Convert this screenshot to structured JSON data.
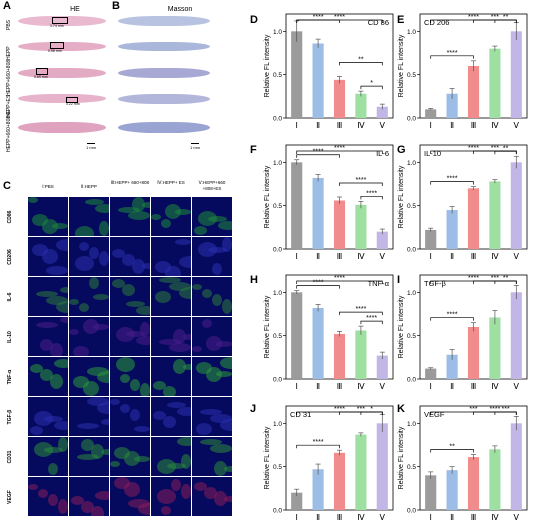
{
  "panel_letters": {
    "A": "A",
    "B": "B",
    "C": "C",
    "D": "D",
    "E": "E",
    "F": "F",
    "G": "G",
    "H": "H",
    "I": "I",
    "J": "J",
    "K": "K"
  },
  "panel_a": {
    "title": "HE",
    "rows": [
      "PBS",
      "HEPP",
      "HEPP+660+808",
      "HEPP+ES",
      "HEPP+660+808+E"
    ],
    "measures": [
      "1.74 mm",
      "0.96 mm",
      "0.69 mm",
      "0.22 mm",
      ""
    ],
    "scale": "1 mm"
  },
  "panel_b": {
    "title": "Masson",
    "scale": "1 mm"
  },
  "panel_c": {
    "columns": [
      "Ⅰ:PBS",
      "Ⅱ:HEPP",
      "Ⅲ:HEPP+ 660+808",
      "Ⅳ:HEPP+ ES",
      "Ⅴ:HEPP+660 +808+ES"
    ],
    "rows": [
      "CD86",
      "CD206",
      "IL-6",
      "IL-10",
      "TNF-α",
      "TGF-β",
      "CD31",
      "VEGF"
    ],
    "scale": "100 μm"
  },
  "colors": {
    "g1": "#9b9b9b",
    "g2": "#9bbde6",
    "g3": "#f08c8c",
    "g4": "#9ee0a2",
    "g5": "#c2b6e6",
    "err": "#555555"
  },
  "chart_data": [
    {
      "id": "D",
      "type": "bar",
      "title": "CD 86",
      "ylabel": "Relative FL intensity",
      "categories": [
        "Ⅰ",
        "Ⅱ",
        "Ⅲ",
        "Ⅳ",
        "Ⅴ"
      ],
      "values": [
        1.0,
        0.86,
        0.44,
        0.28,
        0.13
      ],
      "errors": [
        0.12,
        0.05,
        0.04,
        0.03,
        0.03
      ],
      "ylim": [
        0,
        1.2
      ],
      "title_pos": "right",
      "sig": [
        {
          "a": 0,
          "b": 2,
          "label": "****",
          "lvl": 0
        },
        {
          "a": 0,
          "b": 4,
          "label": "****",
          "lvl": 1
        },
        {
          "a": 2,
          "b": 4,
          "label": "**",
          "lvl": 1
        },
        {
          "a": 3,
          "b": 4,
          "label": "*",
          "lvl": 0
        }
      ]
    },
    {
      "id": "E",
      "type": "bar",
      "title": "CD 206",
      "ylabel": "Relative FL intensity",
      "categories": [
        "Ⅰ",
        "Ⅱ",
        "Ⅲ",
        "Ⅳ",
        "Ⅴ"
      ],
      "values": [
        0.1,
        0.28,
        0.6,
        0.8,
        1.0
      ],
      "errors": [
        0.01,
        0.06,
        0.06,
        0.03,
        0.1
      ],
      "ylim": [
        0,
        1.2
      ],
      "title_pos": "left",
      "sig": [
        {
          "a": 0,
          "b": 2,
          "label": "****",
          "lvl": 0
        },
        {
          "a": 0,
          "b": 4,
          "label": "****",
          "lvl": 1
        },
        {
          "a": 2,
          "b": 4,
          "label": "***",
          "lvl": 2
        },
        {
          "a": 3,
          "b": 4,
          "label": "**",
          "lvl": 0
        }
      ]
    },
    {
      "id": "F",
      "type": "bar",
      "title": "IL-6",
      "ylabel": "Relative FL intensity",
      "categories": [
        "Ⅰ",
        "Ⅱ",
        "Ⅲ",
        "Ⅳ",
        "Ⅴ"
      ],
      "values": [
        1.0,
        0.82,
        0.56,
        0.51,
        0.2
      ],
      "errors": [
        0.03,
        0.04,
        0.04,
        0.04,
        0.03
      ],
      "ylim": [
        0,
        1.2
      ],
      "title_pos": "right",
      "sig": [
        {
          "a": 0,
          "b": 2,
          "label": "****",
          "lvl": 0
        },
        {
          "a": 0,
          "b": 4,
          "label": "****",
          "lvl": 1
        },
        {
          "a": 2,
          "b": 4,
          "label": "****",
          "lvl": 1
        },
        {
          "a": 3,
          "b": 4,
          "label": "****",
          "lvl": 0
        }
      ]
    },
    {
      "id": "G",
      "type": "bar",
      "title": "IL-10",
      "ylabel": "Relative FL intensity",
      "categories": [
        "Ⅰ",
        "Ⅱ",
        "Ⅲ",
        "Ⅳ",
        "Ⅴ"
      ],
      "values": [
        0.22,
        0.45,
        0.7,
        0.78,
        1.0
      ],
      "errors": [
        0.02,
        0.04,
        0.02,
        0.02,
        0.07
      ],
      "ylim": [
        0,
        1.2
      ],
      "title_pos": "left",
      "sig": [
        {
          "a": 0,
          "b": 2,
          "label": "****",
          "lvl": 0
        },
        {
          "a": 0,
          "b": 4,
          "label": "****",
          "lvl": 1
        },
        {
          "a": 2,
          "b": 4,
          "label": "***",
          "lvl": 2
        },
        {
          "a": 3,
          "b": 4,
          "label": "**",
          "lvl": 0
        }
      ]
    },
    {
      "id": "H",
      "type": "bar",
      "title": "TNF-α",
      "ylabel": "Relative FL intensity",
      "categories": [
        "Ⅰ",
        "Ⅱ",
        "Ⅲ",
        "Ⅳ",
        "Ⅴ"
      ],
      "values": [
        1.0,
        0.82,
        0.52,
        0.56,
        0.27
      ],
      "errors": [
        0.02,
        0.04,
        0.03,
        0.05,
        0.04
      ],
      "ylim": [
        0,
        1.2
      ],
      "title_pos": "right",
      "sig": [
        {
          "a": 0,
          "b": 2,
          "label": "****",
          "lvl": 0
        },
        {
          "a": 0,
          "b": 4,
          "label": "****",
          "lvl": 1
        },
        {
          "a": 2,
          "b": 4,
          "label": "****",
          "lvl": 1
        },
        {
          "a": 3,
          "b": 4,
          "label": "****",
          "lvl": 0
        }
      ]
    },
    {
      "id": "I",
      "type": "bar",
      "title": "TGF-β",
      "ylabel": "Relative FL intensity",
      "categories": [
        "Ⅰ",
        "Ⅱ",
        "Ⅲ",
        "Ⅳ",
        "Ⅴ"
      ],
      "values": [
        0.12,
        0.28,
        0.6,
        0.71,
        1.0
      ],
      "errors": [
        0.01,
        0.06,
        0.05,
        0.08,
        0.08
      ],
      "ylim": [
        0,
        1.2
      ],
      "title_pos": "left",
      "sig": [
        {
          "a": 0,
          "b": 2,
          "label": "****",
          "lvl": 0
        },
        {
          "a": 0,
          "b": 4,
          "label": "****",
          "lvl": 1
        },
        {
          "a": 2,
          "b": 4,
          "label": "***",
          "lvl": 2
        },
        {
          "a": 3,
          "b": 4,
          "label": "**",
          "lvl": 0
        }
      ]
    },
    {
      "id": "J",
      "type": "bar",
      "title": "CD 31",
      "ylabel": "Relative FL intensity",
      "categories": [
        "Ⅰ",
        "Ⅱ",
        "Ⅲ",
        "Ⅳ",
        "Ⅴ"
      ],
      "values": [
        0.2,
        0.47,
        0.66,
        0.87,
        1.0
      ],
      "errors": [
        0.04,
        0.06,
        0.03,
        0.02,
        0.1
      ],
      "ylim": [
        0,
        1.2
      ],
      "title_pos": "left",
      "sig": [
        {
          "a": 0,
          "b": 2,
          "label": "****",
          "lvl": 0
        },
        {
          "a": 0,
          "b": 4,
          "label": "****",
          "lvl": 1
        },
        {
          "a": 2,
          "b": 4,
          "label": "***",
          "lvl": 2
        },
        {
          "a": 3,
          "b": 4,
          "label": "*",
          "lvl": 0
        }
      ]
    },
    {
      "id": "K",
      "type": "bar",
      "title": "VEGF",
      "ylabel": "Relative FL intensity",
      "categories": [
        "Ⅰ",
        "Ⅱ",
        "Ⅲ",
        "Ⅳ",
        "Ⅴ"
      ],
      "values": [
        0.4,
        0.46,
        0.61,
        0.7,
        1.0
      ],
      "errors": [
        0.04,
        0.04,
        0.03,
        0.04,
        0.08
      ],
      "ylim": [
        0,
        1.2
      ],
      "title_pos": "left",
      "sig": [
        {
          "a": 0,
          "b": 2,
          "label": "**",
          "lvl": 0
        },
        {
          "a": 0,
          "b": 4,
          "label": "***",
          "lvl": 1
        },
        {
          "a": 2,
          "b": 4,
          "label": "****",
          "lvl": 2
        },
        {
          "a": 3,
          "b": 4,
          "label": "***",
          "lvl": 0
        }
      ]
    }
  ]
}
